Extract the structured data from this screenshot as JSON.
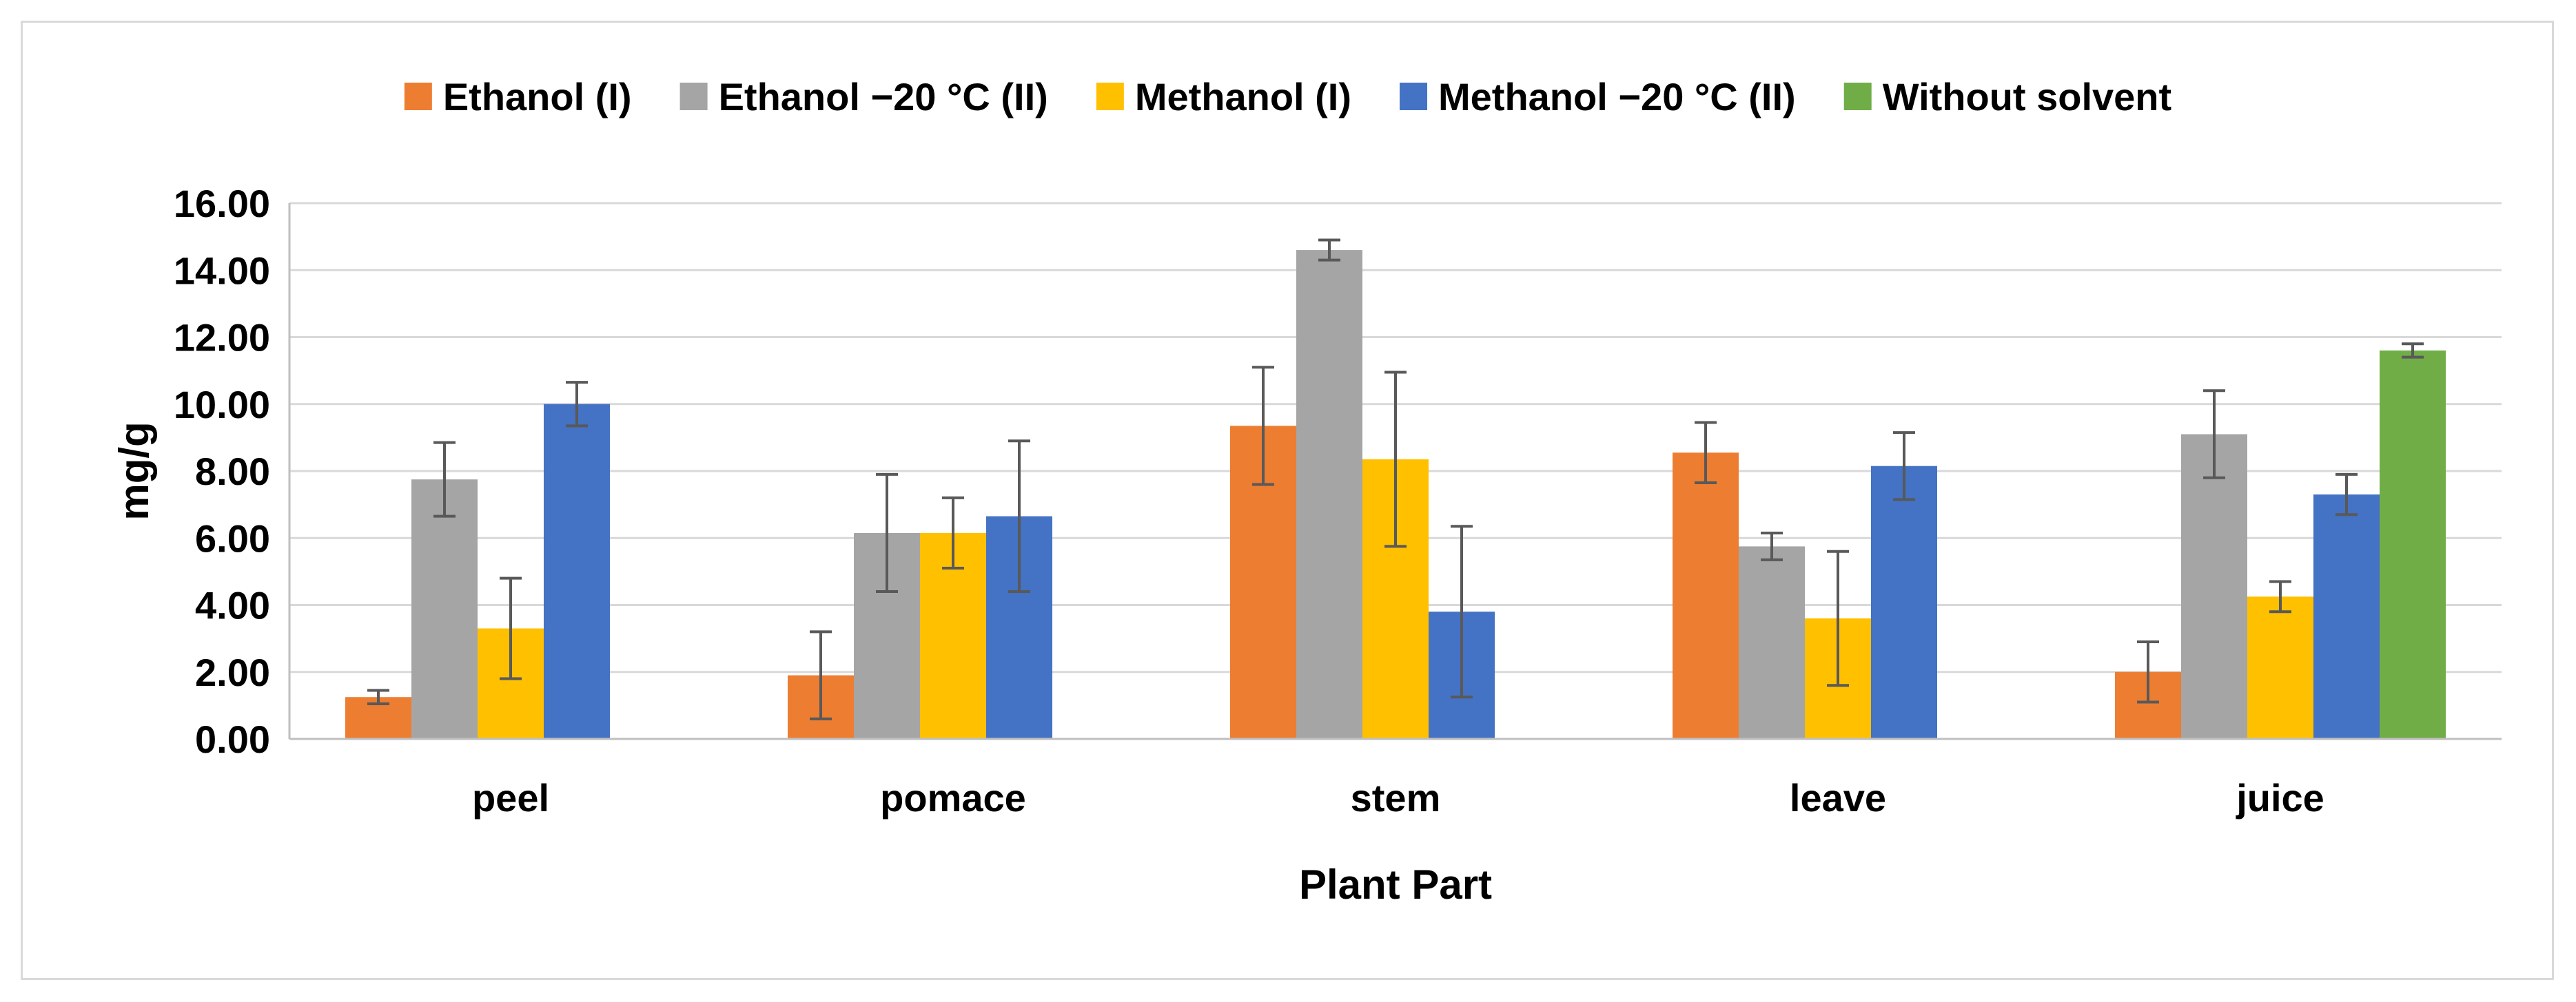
{
  "chart_data": {
    "type": "bar",
    "title": "",
    "xlabel": "Plant Part",
    "ylabel": "mg/g",
    "ylim": [
      0,
      16
    ],
    "ytick_step": 2,
    "ytick_decimals": 2,
    "grid": true,
    "legend_position": "top",
    "categories": [
      "peel",
      "pomace",
      "stem",
      "leave",
      "juice"
    ],
    "series": [
      {
        "name": "Ethanol (I)",
        "color": "#ED7D31",
        "values": [
          1.25,
          1.9,
          9.35,
          8.55,
          2.0
        ],
        "errors": [
          0.2,
          1.3,
          1.75,
          0.9,
          0.9
        ]
      },
      {
        "name": "Ethanol −20 °C (II)",
        "color": "#A5A5A5",
        "values": [
          7.75,
          6.15,
          14.6,
          5.75,
          9.1
        ],
        "errors": [
          1.1,
          1.75,
          0.3,
          0.4,
          1.3
        ]
      },
      {
        "name": "Methanol (I)",
        "color": "#FFC000",
        "values": [
          3.3,
          6.15,
          8.35,
          3.6,
          4.25
        ],
        "errors": [
          1.5,
          1.05,
          2.6,
          2.0,
          0.45
        ]
      },
      {
        "name": "Methanol −20 °C (II)",
        "color": "#4472C4",
        "values": [
          10.0,
          6.65,
          3.8,
          8.15,
          7.3
        ],
        "errors": [
          0.65,
          2.25,
          2.55,
          1.0,
          0.6
        ]
      },
      {
        "name": "Without solvent",
        "color": "#70AD47",
        "values": [
          null,
          null,
          null,
          null,
          11.6
        ],
        "errors": [
          null,
          null,
          null,
          null,
          0.2
        ]
      }
    ]
  }
}
